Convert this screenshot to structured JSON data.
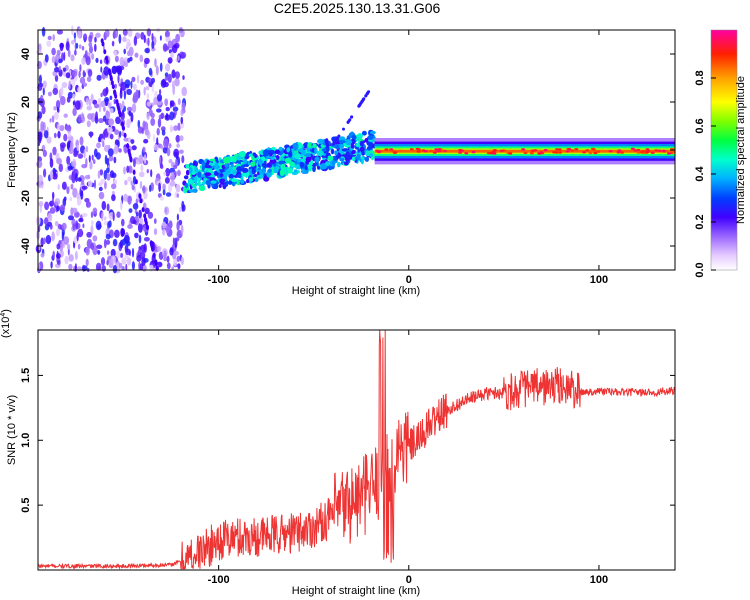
{
  "title": "C2E5.2025.130.13.31.G06",
  "chart_data": [
    {
      "type": "heatmap",
      "xlabel": "Height of straight line (km)",
      "ylabel": "Frequency (Hz)",
      "xlim": [
        -195,
        140
      ],
      "ylim": [
        -50,
        50
      ],
      "x_ticks": [
        -100,
        0,
        100
      ],
      "y_ticks": [
        -40,
        -20,
        0,
        20,
        40
      ],
      "colorbar": {
        "label": "Normalized spectral amplitude",
        "range": [
          0,
          1
        ],
        "ticks": [
          0.0,
          0.2,
          0.4,
          0.6,
          0.8
        ],
        "tick_labels": [
          "0.0",
          "0.2",
          "0.4",
          "0.6",
          "0.8"
        ]
      },
      "features": [
        {
          "x_range": [
            -195,
            -118
          ],
          "description_level": "noise",
          "amplitude": [
            0.1,
            0.3
          ]
        },
        {
          "x_range": [
            -118,
            -18
          ],
          "center_freq_hz": [
            -12,
            5
          ],
          "amplitude": [
            0.25,
            0.45
          ]
        },
        {
          "x_range": [
            -18,
            140
          ],
          "center_freq_hz": [
            0,
            -1
          ],
          "amplitude": [
            0.5,
            1.0
          ]
        }
      ]
    },
    {
      "type": "line",
      "xlabel": "Height of straight line (km)",
      "ylabel": "SNR (10 * v/v)",
      "y_multiplier": "(x10",
      "y_multiplier_exp": "4",
      "xlim": [
        -195,
        140
      ],
      "ylim": [
        0,
        18500
      ],
      "x_ticks": [
        -100,
        0,
        100
      ],
      "y_ticks": [
        5000,
        10000,
        15000
      ],
      "y_tick_labels": [
        "0.5",
        "1.0",
        "1.5"
      ],
      "color": "#ee3333",
      "series": [
        {
          "x": [
            -195,
            -150,
            -125,
            -118,
            -112,
            -105,
            -100,
            -90,
            -80,
            -70,
            -60,
            -50,
            -40,
            -35,
            -30,
            -25,
            -22,
            -20,
            -18,
            -15,
            -12,
            -10,
            -5,
            0,
            5,
            10,
            15,
            20,
            30,
            40,
            50,
            60,
            70,
            80,
            85,
            90,
            100,
            110,
            120,
            130,
            140
          ],
          "y": [
            300,
            300,
            400,
            800,
            1200,
            1800,
            2300,
            2500,
            2600,
            2700,
            2900,
            3300,
            4200,
            4800,
            5200,
            5500,
            6000,
            6200,
            6500,
            7000,
            7500,
            8000,
            9500,
            9500,
            10000,
            11000,
            11800,
            12300,
            13100,
            13600,
            13700,
            14000,
            14100,
            14200,
            14000,
            13700,
            13800,
            13700,
            13700,
            13700,
            13800
          ]
        }
      ]
    }
  ]
}
